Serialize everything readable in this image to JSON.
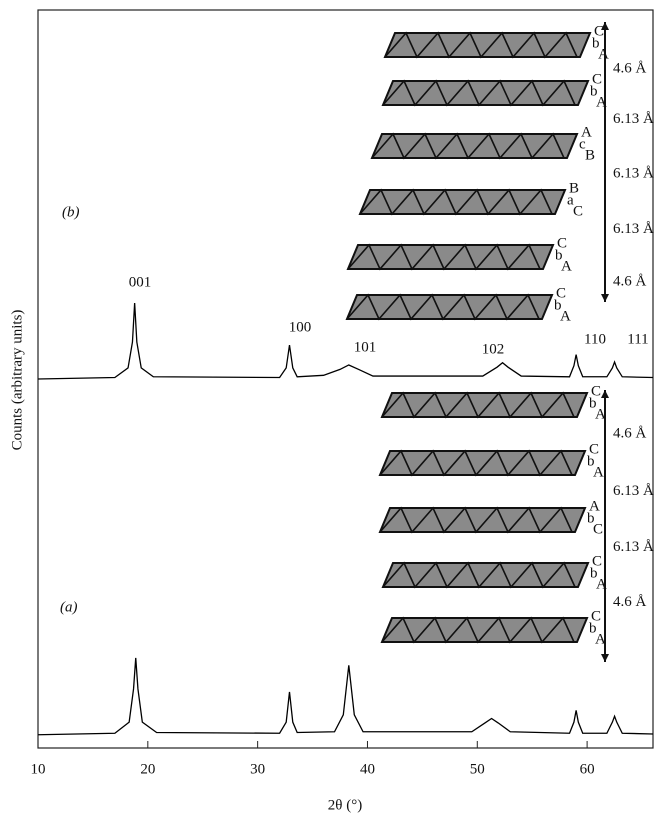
{
  "chart_data": {
    "type": "line",
    "x_label": "2θ (°)",
    "y_label": "Counts (arbitrary units)",
    "xlim": [
      10,
      66
    ],
    "ylim": [
      0,
      100
    ],
    "xticks": [
      10,
      20,
      30,
      40,
      50,
      60
    ],
    "series": [
      {
        "name": "(a)",
        "color": "#000000",
        "x": [
          10,
          17,
          18.3,
          18.7,
          18.9,
          19.1,
          19.5,
          20.8,
          32,
          32.6,
          32.9,
          33.2,
          33.6,
          37,
          37.8,
          38.3,
          38.8,
          39.6,
          49.5,
          50.7,
          51.3,
          51.9,
          53,
          58.4,
          58.8,
          59.0,
          59.2,
          59.6,
          61.8,
          62.3,
          62.5,
          62.7,
          63.2,
          66
        ],
        "values": [
          1.8,
          2,
          3.5,
          8,
          12.2,
          8,
          3.5,
          2.1,
          2,
          3.5,
          7.6,
          3.5,
          2.1,
          2.2,
          4.5,
          11.2,
          4.5,
          2.2,
          2.2,
          3.4,
          4,
          3.4,
          2.2,
          2,
          3.5,
          5.1,
          3.5,
          2,
          2,
          3.5,
          4.3,
          3.5,
          2,
          1.9
        ]
      },
      {
        "name": "(b)",
        "color": "#000000",
        "x": [
          10,
          17,
          18.2,
          18.6,
          18.8,
          19.0,
          19.4,
          20.5,
          32,
          32.6,
          32.9,
          33.2,
          33.6,
          36,
          37.5,
          38.3,
          39.2,
          40.5,
          50.5,
          51.8,
          52.3,
          52.8,
          54,
          58.4,
          58.8,
          59.0,
          59.2,
          59.6,
          61.8,
          62.3,
          62.5,
          62.7,
          63.2,
          66
        ],
        "values": [
          50,
          50.2,
          51.5,
          55,
          60.3,
          55,
          51.5,
          50.3,
          50.2,
          51.5,
          54.6,
          51.5,
          50.3,
          50.5,
          51.3,
          51.9,
          51.3,
          50.4,
          50.4,
          51.6,
          52.2,
          51.6,
          50.4,
          50.3,
          51.8,
          53.3,
          51.8,
          50.3,
          50.3,
          51.5,
          52.3,
          51.5,
          50.3,
          50.2
        ]
      }
    ],
    "annotations": [
      "001",
      "100",
      "101",
      "102",
      "110",
      "111"
    ],
    "insets": [
      {
        "layers": [
          {
            "top": "C",
            "mid": "b",
            "bottom": "A"
          },
          {
            "top": "C",
            "mid": "b",
            "bottom": "A"
          },
          {
            "top": "A",
            "mid": "c",
            "bottom": "B"
          },
          {
            "top": "B",
            "mid": "a",
            "bottom": "C"
          },
          {
            "top": "C",
            "mid": "b",
            "bottom": "A"
          },
          {
            "top": "C",
            "mid": "b",
            "bottom": "A"
          }
        ],
        "spacings": [
          "4.6 Å",
          "6.13 Å",
          "6.13 Å",
          "6.13 Å",
          "4.6 Å"
        ]
      },
      {
        "layers": [
          {
            "top": "C",
            "mid": "b",
            "bottom": "A"
          },
          {
            "top": "C",
            "mid": "b",
            "bottom": "A"
          },
          {
            "top": "A",
            "mid": "b",
            "bottom": "C"
          },
          {
            "top": "C",
            "mid": "b",
            "bottom": "A"
          },
          {
            "top": "C",
            "mid": "b",
            "bottom": "A"
          }
        ],
        "spacings": [
          "4.6 Å",
          "6.13 Å",
          "6.13 Å",
          "4.6 Å"
        ]
      }
    ]
  }
}
